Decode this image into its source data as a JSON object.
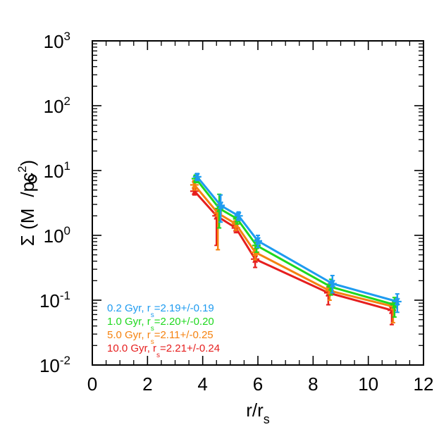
{
  "chart_data": {
    "type": "line",
    "xlabel": "r/r",
    "xlabel_sub": "s",
    "ylabel": "Σ (M",
    "ylabel_unit_tail": "/pc",
    "ylabel_unit_sup": "2",
    "ylabel_close": ")",
    "xlim": [
      0,
      12
    ],
    "ylim": [
      0.01,
      1000
    ],
    "yscale": "log",
    "grid": false,
    "legend_position": "bottom-left",
    "x_ticks": [
      0,
      2,
      4,
      6,
      8,
      10,
      12
    ],
    "x_tick_labels": [
      "0",
      "2",
      "4",
      "6",
      "8",
      "10",
      "12"
    ],
    "y_ticks": [
      0.01,
      0.1,
      1,
      10,
      100,
      1000
    ],
    "y_tick_base": [
      "10",
      "10",
      "10",
      "10",
      "10",
      "10"
    ],
    "y_tick_exp": [
      "-2",
      "-1",
      "0",
      "1",
      "2",
      "3"
    ],
    "series": [
      {
        "name": "0.2 Gyr",
        "legend_pre": "0.2 Gyr, r",
        "legend_sub": "s",
        "legend_post": "=2.19+/-0.19",
        "color": "#1e9bf0",
        "x": [
          3.8,
          4.65,
          5.3,
          6.0,
          8.7,
          11.05
        ],
        "y": [
          8.0,
          2.9,
          2.0,
          0.82,
          0.18,
          0.095
        ],
        "err_lo": [
          7.0,
          1.6,
          1.7,
          0.65,
          0.13,
          0.065
        ],
        "err_hi": [
          9.0,
          4.2,
          2.3,
          1.0,
          0.24,
          0.125
        ]
      },
      {
        "name": "1.0 Gyr",
        "legend_pre": "1.0 Gyr, r",
        "legend_sub": "s",
        "legend_post": "=2.20+/-0.20",
        "color": "#1ed81e",
        "x": [
          3.75,
          4.6,
          5.25,
          5.95,
          8.65,
          10.95
        ],
        "y": [
          7.5,
          2.6,
          1.8,
          0.7,
          0.16,
          0.085
        ],
        "err_lo": [
          6.5,
          1.3,
          1.5,
          0.55,
          0.12,
          0.055
        ],
        "err_hi": [
          8.5,
          4.3,
          2.1,
          0.85,
          0.21,
          0.11
        ]
      },
      {
        "name": "5.0 Gyr",
        "legend_pre": "5.0 Gyr, r",
        "legend_sub": "s",
        "legend_post": "=2.11+/-0.25",
        "color": "#f5820f",
        "x": [
          3.7,
          4.55,
          5.2,
          5.9,
          8.6,
          10.9
        ],
        "y": [
          6.0,
          2.2,
          1.5,
          0.55,
          0.14,
          0.08
        ],
        "err_lo": [
          5.0,
          0.6,
          1.2,
          0.42,
          0.1,
          0.045
        ],
        "err_hi": [
          7.0,
          3.0,
          1.8,
          0.7,
          0.18,
          0.1
        ]
      },
      {
        "name": "10.0 Gyr",
        "legend_pre": "10.0 Gyr, r",
        "legend_sub": "s",
        "legend_post": "=2.21+/-0.24",
        "color": "#e61e1e",
        "x": [
          3.7,
          4.5,
          5.2,
          5.9,
          8.55,
          10.85
        ],
        "y": [
          4.8,
          2.0,
          1.3,
          0.43,
          0.13,
          0.07
        ],
        "err_lo": [
          4.2,
          0.7,
          1.1,
          0.32,
          0.085,
          0.042
        ],
        "err_hi": [
          5.5,
          2.5,
          1.6,
          0.55,
          0.16,
          0.09
        ]
      }
    ]
  }
}
